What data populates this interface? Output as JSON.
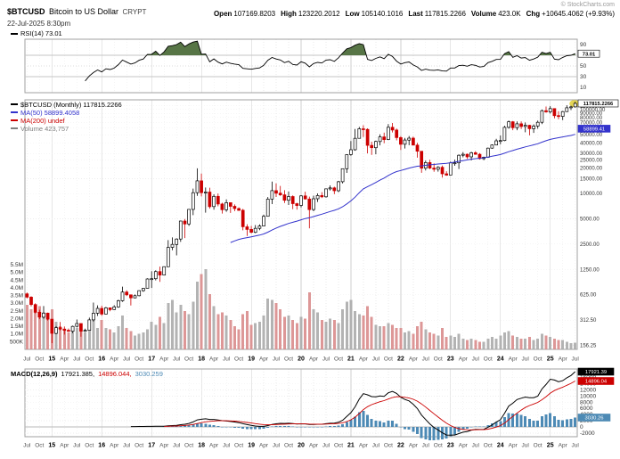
{
  "header": {
    "symbol": "$BTCUSD",
    "description": "Bitcoin to US Dollar",
    "exchange": "CRYPT",
    "datetime": "22-Jul-2025 8:30pm",
    "copyright": "© StockCharts.com",
    "quote": [
      {
        "label": "Open",
        "value": "107169.8203"
      },
      {
        "label": "High",
        "value": "123220.2012"
      },
      {
        "label": "Low",
        "value": "105140.1016"
      },
      {
        "label": "Last",
        "value": "117815.2266"
      },
      {
        "label": "Volume",
        "value": "423.0K"
      },
      {
        "label": "Chg",
        "value": "+10645.4062 (+9.93%)"
      }
    ]
  },
  "legends": {
    "rsi": "RSI(14) 73.01",
    "main": [
      {
        "text": "$BTCUSD (Monthly) 117815.2266",
        "color": "#000000"
      },
      {
        "text": "MA(50) 58899.4058",
        "color": "#3333cc"
      },
      {
        "text": "MA(200) undef",
        "color": "#cc0000"
      },
      {
        "text": "Volume 423,757",
        "color": "#808080"
      }
    ],
    "macd_title": "MACD(12,26,9)",
    "macd_values": [
      {
        "text": "17921.385,",
        "color": "#000000"
      },
      {
        "text": "14896.044,",
        "color": "#cc0000"
      },
      {
        "text": "3030.259",
        "color": "#4d8ab5"
      }
    ]
  },
  "axis_boxes": {
    "price": "117815.2266",
    "ma50": "58899.41",
    "rsi": "73.01",
    "macd": "17921.39",
    "signal": "14896.04",
    "hist": "3030.26"
  },
  "colors": {
    "up": "#000000",
    "up_fill": "#ffffff",
    "down": "#cc0000",
    "volume_up": "#ababab",
    "volume_down": "#d98c8c",
    "ma50": "#3333cc",
    "rsi_fill": "#4e6e3c",
    "macd_line": "#000000",
    "macd_signal": "#cc0000",
    "macd_hist": "#4d8ab5"
  },
  "chart_data": {
    "type": "candlestick",
    "symbol": "$BTCUSD",
    "title": "$BTCUSD (Monthly)",
    "timeframe": "Monthly",
    "log_scale": true,
    "x_range": [
      "2014-07",
      "2025-07"
    ],
    "panels": [
      "RSI(14)",
      "Price+Volume",
      "MACD(12,26,9)"
    ],
    "indicators": {
      "rsi_period": 14,
      "sma": 50,
      "macd": [
        12,
        26,
        9
      ]
    },
    "price_ticks": [
      110000,
      100000,
      90000,
      80000,
      70000,
      60000,
      50000,
      40000,
      30000,
      25000,
      20000,
      15000,
      10000,
      5000,
      2500,
      1250,
      625,
      312.5,
      156.25
    ],
    "volume_ticks_k": [
      5500,
      5000,
      4500,
      4000,
      3500,
      3000,
      2500,
      2000,
      1500,
      1000,
      500
    ],
    "rsi_ticks": [
      90,
      70,
      50,
      30,
      10
    ],
    "rsi_bands": {
      "overbought": 70,
      "mid": 50,
      "oversold": 30
    },
    "macd_ticks": [
      16000,
      14000,
      12000,
      10000,
      8000,
      6000,
      4000,
      2000,
      0,
      -2000
    ],
    "last": {
      "close": 117815.2266,
      "rsi": 73.01,
      "ma50": 58899.4058,
      "macd": 17921.385,
      "macd_signal": 14896.044,
      "macd_hist": 3030.259,
      "volume_k": 423.0
    },
    "columns": [
      "month",
      "open",
      "high",
      "low",
      "close",
      "volume_k"
    ],
    "candles": [
      [
        "2014-07",
        640,
        665,
        565,
        585,
        2900
      ],
      [
        "2014-08",
        585,
        600,
        455,
        478,
        2600
      ],
      [
        "2014-09",
        478,
        495,
        375,
        387,
        2500
      ],
      [
        "2014-10",
        387,
        415,
        320,
        338,
        2800
      ],
      [
        "2014-11",
        338,
        458,
        325,
        378,
        2400
      ],
      [
        "2014-12",
        378,
        384,
        309,
        320,
        2300
      ],
      [
        "2015-01",
        320,
        321,
        166,
        217,
        2600
      ],
      [
        "2015-02",
        217,
        265,
        212,
        254,
        1800
      ],
      [
        "2015-03",
        254,
        297,
        236,
        244,
        1500
      ],
      [
        "2015-04",
        244,
        262,
        210,
        236,
        1300
      ],
      [
        "2015-05",
        236,
        248,
        227,
        230,
        1100
      ],
      [
        "2015-06",
        230,
        268,
        219,
        263,
        1200
      ],
      [
        "2015-07",
        263,
        317,
        255,
        284,
        1400
      ],
      [
        "2015-08",
        284,
        285,
        198,
        230,
        1600
      ],
      [
        "2015-09",
        230,
        247,
        226,
        236,
        1100
      ],
      [
        "2015-10",
        236,
        334,
        235,
        314,
        1500
      ],
      [
        "2015-11",
        314,
        504,
        300,
        377,
        1900
      ],
      [
        "2015-12",
        377,
        467,
        350,
        430,
        1400
      ],
      [
        "2016-01",
        430,
        463,
        351,
        368,
        1900
      ],
      [
        "2016-02",
        368,
        447,
        366,
        437,
        1400
      ],
      [
        "2016-03",
        437,
        440,
        398,
        416,
        1300
      ],
      [
        "2016-04",
        416,
        470,
        412,
        448,
        1100
      ],
      [
        "2016-05",
        448,
        547,
        438,
        531,
        1500
      ],
      [
        "2016-06",
        531,
        780,
        516,
        673,
        2200
      ],
      [
        "2016-07",
        673,
        705,
        603,
        624,
        1400
      ],
      [
        "2016-08",
        624,
        630,
        465,
        575,
        1200
      ],
      [
        "2016-09",
        575,
        629,
        567,
        609,
        900
      ],
      [
        "2016-10",
        609,
        702,
        598,
        700,
        1000
      ],
      [
        "2016-11",
        700,
        755,
        678,
        745,
        1100
      ],
      [
        "2016-12",
        745,
        982,
        740,
        963,
        1300
      ],
      [
        "2017-01",
        963,
        1191,
        752,
        970,
        1800
      ],
      [
        "2017-02",
        970,
        1224,
        925,
        1179,
        1600
      ],
      [
        "2017-03",
        1179,
        1350,
        891,
        1071,
        2100
      ],
      [
        "2017-04",
        1071,
        1347,
        1061,
        1347,
        1700
      ],
      [
        "2017-05",
        1347,
        2791,
        1341,
        2286,
        3000
      ],
      [
        "2017-06",
        2286,
        3000,
        2113,
        2480,
        3200
      ],
      [
        "2017-07",
        2480,
        2930,
        1836,
        2875,
        2400
      ],
      [
        "2017-08",
        2875,
        4765,
        2655,
        4703,
        2900
      ],
      [
        "2017-09",
        4703,
        4980,
        2951,
        4338,
        2500
      ],
      [
        "2017-10",
        4338,
        6484,
        4110,
        6468,
        2300
      ],
      [
        "2017-11",
        6468,
        11441,
        5528,
        10233,
        3100
      ],
      [
        "2017-12",
        10233,
        19891,
        9380,
        14156,
        4400
      ],
      [
        "2018-01",
        14156,
        17234,
        9222,
        10221,
        4900
      ],
      [
        "2018-02",
        10221,
        11786,
        5920,
        10397,
        5200
      ],
      [
        "2018-03",
        10397,
        11710,
        6600,
        6973,
        3600
      ],
      [
        "2018-04",
        6973,
        9770,
        6425,
        9240,
        2800
      ],
      [
        "2018-05",
        9240,
        9990,
        7041,
        7494,
        2300
      ],
      [
        "2018-06",
        7494,
        7754,
        5780,
        6404,
        2400
      ],
      [
        "2018-07",
        6404,
        8507,
        6070,
        7780,
        2200
      ],
      [
        "2018-08",
        7780,
        7786,
        5880,
        7037,
        1900
      ],
      [
        "2018-09",
        7037,
        7412,
        6166,
        6625,
        1500
      ],
      [
        "2018-10",
        6625,
        6810,
        6205,
        6317,
        1300
      ],
      [
        "2018-11",
        6317,
        6560,
        3652,
        4017,
        2300
      ],
      [
        "2018-12",
        4017,
        4310,
        3122,
        3742,
        2500
      ],
      [
        "2019-01",
        3742,
        4110,
        3350,
        3457,
        1600
      ],
      [
        "2019-02",
        3457,
        4219,
        3373,
        3854,
        1700
      ],
      [
        "2019-03",
        3854,
        4290,
        3670,
        4105,
        1800
      ],
      [
        "2019-04",
        4105,
        5627,
        4060,
        5350,
        2200
      ],
      [
        "2019-05",
        5350,
        9074,
        5330,
        8574,
        3300
      ],
      [
        "2019-06",
        8574,
        13868,
        7480,
        10817,
        3200
      ],
      [
        "2019-07",
        10817,
        13185,
        9080,
        10085,
        3000
      ],
      [
        "2019-08",
        10085,
        12316,
        9352,
        9630,
        2600
      ],
      [
        "2019-09",
        9630,
        10949,
        7714,
        8293,
        2100
      ],
      [
        "2019-10",
        8293,
        10540,
        7293,
        9199,
        2200
      ],
      [
        "2019-11",
        9199,
        9505,
        6515,
        7569,
        1900
      ],
      [
        "2019-12",
        7569,
        7755,
        6425,
        7193,
        1700
      ],
      [
        "2020-01",
        7193,
        9553,
        6850,
        9350,
        2100
      ],
      [
        "2020-02",
        9350,
        10500,
        8443,
        8599,
        2000
      ],
      [
        "2020-03",
        8599,
        9170,
        3850,
        6438,
        3700
      ],
      [
        "2020-04",
        6438,
        9440,
        6150,
        8658,
        2600
      ],
      [
        "2020-05",
        8658,
        10027,
        7930,
        9461,
        2400
      ],
      [
        "2020-06",
        9461,
        10380,
        8825,
        9137,
        1900
      ],
      [
        "2020-07",
        9137,
        11420,
        8905,
        11351,
        1800
      ],
      [
        "2020-08",
        11351,
        12473,
        10875,
        11655,
        2000
      ],
      [
        "2020-09",
        11655,
        12045,
        9825,
        10784,
        1900
      ],
      [
        "2020-10",
        10784,
        14100,
        10374,
        13797,
        1700
      ],
      [
        "2020-11",
        13797,
        19863,
        13195,
        19698,
        2600
      ],
      [
        "2020-12",
        19698,
        29300,
        17572,
        28990,
        3100
      ],
      [
        "2021-01",
        28990,
        41950,
        28130,
        33114,
        3200
      ],
      [
        "2021-02",
        33114,
        58352,
        32296,
        45240,
        2500
      ],
      [
        "2021-03",
        45240,
        61844,
        44963,
        58787,
        2300
      ],
      [
        "2021-04",
        58787,
        64863,
        46930,
        57750,
        2200
      ],
      [
        "2021-05",
        57750,
        59500,
        30000,
        37332,
        2800
      ],
      [
        "2021-06",
        37332,
        41330,
        28800,
        35041,
        2100
      ],
      [
        "2021-07",
        35041,
        42448,
        29278,
        41553,
        1600
      ],
      [
        "2021-08",
        41553,
        50500,
        37332,
        47130,
        1500
      ],
      [
        "2021-09",
        47130,
        52920,
        39573,
        43790,
        1500
      ],
      [
        "2021-10",
        43790,
        66999,
        43283,
        61310,
        1700
      ],
      [
        "2021-11",
        61310,
        68990,
        53256,
        56882,
        1600
      ],
      [
        "2021-12",
        56882,
        59041,
        42874,
        46217,
        1400
      ],
      [
        "2022-01",
        46217,
        47990,
        32950,
        38483,
        1400
      ],
      [
        "2022-02",
        38483,
        45821,
        34322,
        43193,
        1100
      ],
      [
        "2022-03",
        43193,
        48240,
        37550,
        45539,
        1200
      ],
      [
        "2022-04",
        45539,
        47448,
        37702,
        37650,
        1000
      ],
      [
        "2022-05",
        37650,
        40023,
        26700,
        31793,
        1500
      ],
      [
        "2022-06",
        31793,
        31982,
        17593,
        19985,
        1800
      ],
      [
        "2022-07",
        19985,
        24668,
        18780,
        23307,
        1300
      ],
      [
        "2022-08",
        23307,
        25211,
        19526,
        20050,
        1100
      ],
      [
        "2022-09",
        20050,
        22799,
        18125,
        19432,
        1000
      ],
      [
        "2022-10",
        19432,
        21085,
        18190,
        20495,
        900
      ],
      [
        "2022-11",
        20495,
        21480,
        15476,
        17168,
        1400
      ],
      [
        "2022-12",
        17168,
        18387,
        16256,
        16548,
        800
      ],
      [
        "2023-01",
        16548,
        23960,
        16490,
        23130,
        900
      ],
      [
        "2023-02",
        23130,
        25250,
        21351,
        23142,
        800
      ],
      [
        "2023-03",
        23142,
        29184,
        19549,
        28478,
        1000
      ],
      [
        "2023-04",
        28478,
        31050,
        26942,
        29234,
        700
      ],
      [
        "2023-05",
        29234,
        29820,
        25800,
        27220,
        600
      ],
      [
        "2023-06",
        27220,
        31432,
        24750,
        30472,
        700
      ],
      [
        "2023-07",
        30472,
        31850,
        28855,
        29232,
        600
      ],
      [
        "2023-08",
        29232,
        30230,
        25350,
        25932,
        500
      ],
      [
        "2023-09",
        25932,
        27480,
        24900,
        26968,
        500
      ],
      [
        "2023-10",
        26968,
        35158,
        26538,
        34657,
        700
      ],
      [
        "2023-11",
        34657,
        38415,
        34085,
        37724,
        800
      ],
      [
        "2023-12",
        37724,
        44700,
        37615,
        42280,
        700
      ],
      [
        "2024-01",
        42280,
        48970,
        38501,
        42580,
        900
      ],
      [
        "2024-02",
        42580,
        63933,
        41884,
        61168,
        1100
      ],
      [
        "2024-03",
        61168,
        73794,
        59005,
        71334,
        1200
      ],
      [
        "2024-04",
        71334,
        72797,
        56500,
        60637,
        900
      ],
      [
        "2024-05",
        60637,
        71946,
        56552,
        67491,
        800
      ],
      [
        "2024-06",
        67491,
        71997,
        58402,
        62678,
        700
      ],
      [
        "2024-07",
        62678,
        69987,
        53485,
        64628,
        700
      ],
      [
        "2024-08",
        64628,
        65659,
        49050,
        58970,
        800
      ],
      [
        "2024-09",
        58970,
        66480,
        52530,
        63330,
        600
      ],
      [
        "2024-10",
        63330,
        73620,
        58895,
        70216,
        700
      ],
      [
        "2024-11",
        70216,
        99655,
        66835,
        96449,
        1000
      ],
      [
        "2024-12",
        96449,
        108268,
        91317,
        93429,
        900
      ],
      [
        "2025-01",
        93429,
        109358,
        89164,
        102430,
        800
      ],
      [
        "2025-02",
        102430,
        102500,
        78258,
        84350,
        700
      ],
      [
        "2025-03",
        84350,
        95043,
        76606,
        82550,
        600
      ],
      [
        "2025-04",
        82550,
        95768,
        74434,
        94210,
        600
      ],
      [
        "2025-05",
        94210,
        111980,
        93320,
        104600,
        500
      ],
      [
        "2025-06",
        104600,
        110530,
        98240,
        107170,
        400
      ],
      [
        "2025-07",
        107169.8203,
        123220.2012,
        105140.1016,
        117815.2266,
        423
      ]
    ]
  }
}
